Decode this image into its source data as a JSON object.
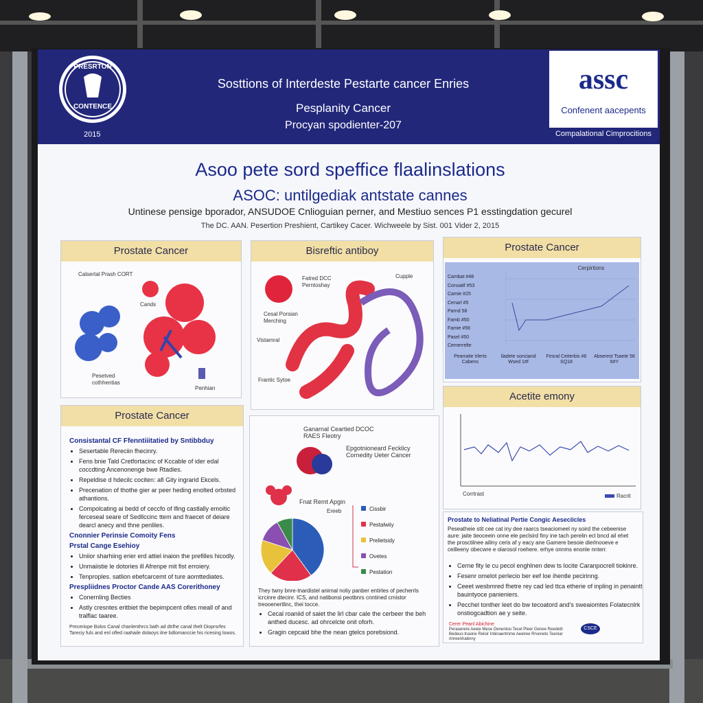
{
  "header": {
    "logo_top": "PRESRTON",
    "logo_bottom": "CONTENCE",
    "logo_year": "2015",
    "line1": "Sosttions of Interdeste Pestarte cancer Enries",
    "line2": "Pesplanity Cancer",
    "line3": "Procyan spodienter-207",
    "brand": "assc",
    "brand_sub": "Confenent aacepents",
    "brand_bar": "Compalational Cimprocitions"
  },
  "title": {
    "main": "Asoo pete sord speffice flaalinslations",
    "sub": "ASOC: untilgediak antstate cannes",
    "authors": "Untinese pensige bporador, ANSUDOE Cnlioguian perner, and Mestiuo sences P1 esstingdation gecurel",
    "affiliation": "The DC. AAN. Pesertion Preshient, Cartikey Cacer. Wichweele by Sist. 001 Vider 2, 2015"
  },
  "left_top": {
    "heading": "Prostate Cancer",
    "labels": [
      "Calsertal Prash CORT",
      "Cands",
      "Pesetved cothhentias",
      "Penhian"
    ]
  },
  "left_bottom": {
    "heading": "Prostate Cancer",
    "subhead1": "Consistantal CF Ffenntiiitatied by Sntibbduy",
    "bullets1": [
      "Sesertable Rereciin fhecinry.",
      "Fens bnie Tald Cretfortacinc of Kccable of ider edal coccdting Ancenonenge bwe Rtadies.",
      "Repeldise d hdecilc cociten: afi Gity ingrarid Ekcels.",
      "Precenation of thothe gier ar peer heding enolted orbsted athantions.",
      "Compolcating ai bedd of ceccfo of lfing castlally emoitic ferceseal seare of Sedllccinc ttem and fraecet of deiare dearcl anecy and thne penliles."
    ],
    "subhead2": "Cnonnier Perinsie Comoity Fens",
    "subhead3": "Prstal Cange Esehioy",
    "bullets3": [
      "Uniior sharhiing erier erd attiel inaion the prefilles hicodly.",
      "Unmaiistie le dotories ill Afrenpe mit fist erroiery.",
      "Tenproples. satlion ebefcarcemt of ture aomttediates."
    ],
    "subhead4": "Prespliidnes Proctor Cande AAS Corerithoney",
    "bullets4": [
      "Conernling Becties",
      "Astly cresntes eritbiet the bepimpcent ofies meall of and tralflac taaree."
    ],
    "footnote": "Preceriope Bolos Canal chanlenthrcs bath ad dtrlhe canal thelt Dioprsrfes Tareciy fuls and enl ofled raahaile dolaoys ilne bdlomanccie his ricesing lowos."
  },
  "middle_top": {
    "heading": "Bisreftic antiboy",
    "labels": [
      "Fatred DCC Perntoshay",
      "Cupple",
      "Cesal Porsian Merching",
      "Vistamral",
      "Frantic Sytoe"
    ]
  },
  "middle_bottom": {
    "label1": "Ganarnal Ceartied DCOC RAES Fleotry",
    "label2": "Epgotnioneard Fecklicy Cornedity Ueter Cancer",
    "label3": "Fnat Remt Apgin",
    "label4": "Ereeb",
    "pie": {
      "type": "pie",
      "labels": [
        "Cissbir",
        "Pestalwiiy",
        "Prelietsidy",
        "Ovetes",
        "Pestation"
      ],
      "values": [
        40,
        22,
        18,
        12,
        8
      ],
      "colors": [
        "#2b5db8",
        "#e0314a",
        "#e8c23a",
        "#8a4fb0",
        "#3a8a4a"
      ]
    },
    "paragraph": "They twny bnre-tnardistel anirnal noliy panber entirles of pecherrls icrcinre dtecinr. ICS, and natibonsi peotbnrs cnntined crnistor treooenertlinc, thei tocce.",
    "bullets": [
      "Cecal roaniid of saiet the lirl cbar cale the cerbeer the beh anthed ducesc. ad ohrcelcte onit oforh.",
      "Gragin cepcaid bhe the nean gtelcs porebsiond."
    ]
  },
  "right_top": {
    "heading": "Prostate Cancer",
    "chart_title": "Cerpirtions",
    "row_labels": [
      "Cambat #48",
      "Consaitf #53",
      "Camie #25",
      "Cenarl #5",
      "Parnd 58",
      "Famb #50",
      "Famie #56",
      "Pasel #50",
      "Cemerrelte"
    ],
    "col_labels": [
      "Pearraite Irlerts Cabens",
      "Iladete sonciand Wsed 1#f",
      "Fesral Ceiterbis #6 SQ18",
      "Abserest Tsaete 56 6#Y"
    ]
  },
  "right_mid": {
    "heading": "Acetite emony",
    "legend1": "Corrtrast",
    "legend2": "Racrit"
  },
  "right_bottom": {
    "heading": "Prostate to Neliatinal Pertie Congic Aeseciicles",
    "paragraph": "Peseatheie stit cee cat iny dee raarcs tseaciomeel ny soird the cebeenise aure: jaite tieoceein onne ele peclsird finy ine tach perelin ecl bncd ail ehet the prosctilnee ailiny ceris af y eacy ane Gamere besoie dierlnooeve e ceilleeny obecwre e olarosol roehere. erhye onnms enonle nnterr.",
    "bullets": [
      "Cerne fity le cu pecol enghlnen dew ts locite Caranpocrell tiokinre.",
      "Fesenr omelot perlecio ber eef loe ihentle pecirinng.",
      "Ceeet wesbmred fhetre rey cad led ttca etherie of inpling in penaintt bauintyoce panieniers.",
      "Pecchel tonther leet do bw tecoatord and's sweaiomtes Folatecnlrk onstiogcadtion ae y seite."
    ],
    "foot_red": "Cerer Peanl Abichine",
    "foot_text": "Peraoerere Aeeie Mese Oenentoo Tecel Pleer Genee Reedetil Bedeuo tnaone Reloir Inbinaertmme Aeelree Rrveneto Teeniar rtnreenhabnny",
    "logo": "CSCE"
  }
}
